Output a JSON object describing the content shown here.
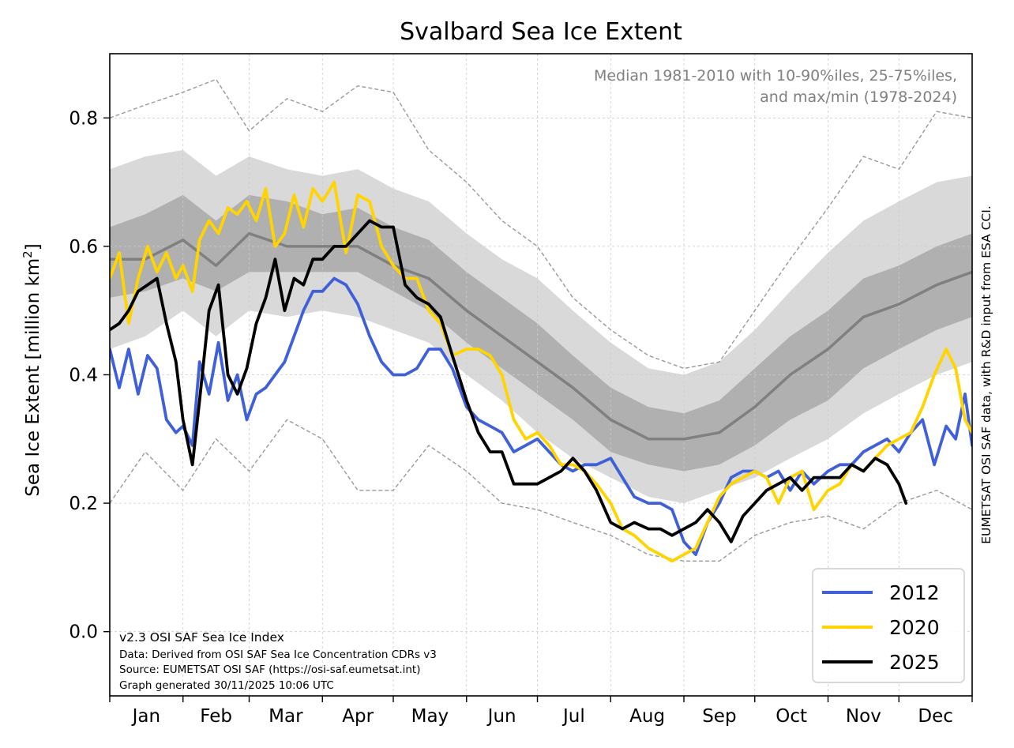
{
  "chart_data": {
    "type": "line",
    "title": "Svalbard Sea Ice Extent",
    "ylabel_main": "Sea Ice Extent [million km",
    "ylabel_sup": "2",
    "ylabel_close": "]",
    "xlabel": "",
    "ylim": [
      -0.1,
      0.9
    ],
    "xlim": [
      0,
      365
    ],
    "yticks": [
      0.0,
      0.2,
      0.4,
      0.6,
      0.8
    ],
    "ytick_labels": [
      "0.0",
      "0.2",
      "0.4",
      "0.6",
      "0.8"
    ],
    "months": [
      "Jan",
      "Feb",
      "Mar",
      "Apr",
      "May",
      "Jun",
      "Jul",
      "Aug",
      "Sep",
      "Oct",
      "Nov",
      "Dec"
    ],
    "month_starts": [
      0,
      31,
      59,
      90,
      120,
      151,
      181,
      212,
      243,
      273,
      304,
      334,
      365
    ],
    "grid": true,
    "legend_position": "bottom-right",
    "annotation_top_right": [
      "Median 1981-2010 with 10-90%iles, 25-75%iles,",
      "and max/min (1978-2024)"
    ],
    "footnote": [
      "v2.3 OSI SAF Sea Ice Index",
      "Data: Derived from OSI SAF Sea Ice Concentration CDRs v3",
      "Source: EUMETSAT OSI SAF (https://osi-saf.eumetsat.int)",
      "Graph generated 30/11/2025 10:06 UTC"
    ],
    "side_note": "EUMETSAT OSI SAF data, with R&D input from ESA CCI.",
    "climatology": {
      "x": [
        0,
        15,
        31,
        45,
        59,
        75,
        90,
        105,
        120,
        135,
        151,
        166,
        181,
        196,
        212,
        228,
        243,
        258,
        273,
        288,
        304,
        319,
        334,
        350,
        365
      ],
      "median": [
        0.58,
        0.58,
        0.61,
        0.57,
        0.62,
        0.6,
        0.6,
        0.6,
        0.57,
        0.55,
        0.5,
        0.46,
        0.42,
        0.38,
        0.33,
        0.3,
        0.3,
        0.31,
        0.35,
        0.4,
        0.44,
        0.49,
        0.51,
        0.54,
        0.56
      ],
      "p25": [
        0.52,
        0.53,
        0.55,
        0.53,
        0.56,
        0.56,
        0.56,
        0.56,
        0.53,
        0.5,
        0.45,
        0.41,
        0.37,
        0.33,
        0.28,
        0.26,
        0.25,
        0.26,
        0.29,
        0.33,
        0.36,
        0.41,
        0.44,
        0.47,
        0.49
      ],
      "p75": [
        0.63,
        0.65,
        0.68,
        0.64,
        0.68,
        0.67,
        0.65,
        0.66,
        0.63,
        0.61,
        0.56,
        0.52,
        0.48,
        0.43,
        0.38,
        0.35,
        0.34,
        0.36,
        0.41,
        0.46,
        0.5,
        0.55,
        0.57,
        0.6,
        0.62
      ],
      "p10": [
        0.44,
        0.46,
        0.5,
        0.46,
        0.5,
        0.49,
        0.5,
        0.49,
        0.47,
        0.45,
        0.4,
        0.36,
        0.31,
        0.27,
        0.24,
        0.21,
        0.2,
        0.22,
        0.24,
        0.27,
        0.3,
        0.34,
        0.37,
        0.4,
        0.42
      ],
      "p90": [
        0.72,
        0.74,
        0.75,
        0.71,
        0.74,
        0.72,
        0.71,
        0.72,
        0.69,
        0.67,
        0.62,
        0.58,
        0.55,
        0.5,
        0.45,
        0.41,
        0.4,
        0.42,
        0.47,
        0.53,
        0.59,
        0.64,
        0.67,
        0.7,
        0.71
      ],
      "max": [
        0.8,
        0.82,
        0.84,
        0.86,
        0.78,
        0.83,
        0.81,
        0.85,
        0.84,
        0.75,
        0.7,
        0.64,
        0.6,
        0.52,
        0.47,
        0.43,
        0.41,
        0.42,
        0.5,
        0.58,
        0.66,
        0.74,
        0.72,
        0.81,
        0.8
      ],
      "min": [
        0.2,
        0.28,
        0.22,
        0.3,
        0.25,
        0.33,
        0.3,
        0.22,
        0.22,
        0.29,
        0.25,
        0.2,
        0.19,
        0.17,
        0.15,
        0.12,
        0.11,
        0.11,
        0.15,
        0.17,
        0.18,
        0.16,
        0.2,
        0.22,
        0.19
      ]
    },
    "series": [
      {
        "name": "2012",
        "color": "#4060d8",
        "x": [
          0,
          4,
          8,
          12,
          16,
          20,
          24,
          28,
          31,
          35,
          38,
          42,
          46,
          50,
          54,
          58,
          62,
          66,
          70,
          74,
          78,
          82,
          86,
          90,
          95,
          100,
          105,
          110,
          115,
          120,
          125,
          130,
          135,
          140,
          145,
          151,
          156,
          161,
          166,
          171,
          176,
          181,
          186,
          191,
          196,
          201,
          206,
          212,
          217,
          222,
          228,
          233,
          238,
          243,
          248,
          253,
          258,
          263,
          268,
          273,
          278,
          283,
          288,
          293,
          298,
          304,
          309,
          314,
          319,
          324,
          329,
          334,
          339,
          344,
          349,
          354,
          358,
          362,
          365
        ],
        "y": [
          0.44,
          0.38,
          0.44,
          0.37,
          0.43,
          0.41,
          0.33,
          0.31,
          0.32,
          0.29,
          0.42,
          0.37,
          0.45,
          0.36,
          0.4,
          0.33,
          0.37,
          0.38,
          0.4,
          0.42,
          0.46,
          0.5,
          0.53,
          0.53,
          0.55,
          0.54,
          0.51,
          0.46,
          0.42,
          0.4,
          0.4,
          0.41,
          0.44,
          0.44,
          0.41,
          0.35,
          0.33,
          0.32,
          0.31,
          0.28,
          0.29,
          0.3,
          0.28,
          0.26,
          0.25,
          0.26,
          0.26,
          0.27,
          0.24,
          0.21,
          0.2,
          0.2,
          0.19,
          0.14,
          0.12,
          0.17,
          0.2,
          0.24,
          0.25,
          0.25,
          0.24,
          0.25,
          0.22,
          0.25,
          0.23,
          0.25,
          0.26,
          0.26,
          0.28,
          0.29,
          0.3,
          0.28,
          0.31,
          0.33,
          0.26,
          0.32,
          0.3,
          0.37,
          0.29
        ]
      },
      {
        "name": "2020",
        "color": "#ffd400",
        "x": [
          0,
          4,
          8,
          12,
          16,
          20,
          24,
          28,
          31,
          35,
          38,
          42,
          46,
          50,
          54,
          58,
          62,
          66,
          70,
          74,
          78,
          82,
          86,
          90,
          95,
          100,
          105,
          110,
          115,
          120,
          125,
          130,
          135,
          140,
          145,
          151,
          156,
          161,
          166,
          171,
          176,
          181,
          186,
          191,
          196,
          201,
          206,
          212,
          217,
          222,
          228,
          233,
          238,
          243,
          248,
          253,
          258,
          263,
          268,
          273,
          278,
          283,
          288,
          293,
          298,
          304,
          309,
          314,
          319,
          324,
          329,
          334,
          339,
          344,
          349,
          354,
          358,
          362,
          365
        ],
        "y": [
          0.55,
          0.59,
          0.48,
          0.55,
          0.6,
          0.56,
          0.59,
          0.55,
          0.57,
          0.53,
          0.61,
          0.64,
          0.62,
          0.66,
          0.65,
          0.67,
          0.64,
          0.69,
          0.6,
          0.62,
          0.68,
          0.63,
          0.69,
          0.67,
          0.7,
          0.59,
          0.68,
          0.67,
          0.6,
          0.57,
          0.55,
          0.55,
          0.5,
          0.48,
          0.43,
          0.44,
          0.44,
          0.43,
          0.4,
          0.33,
          0.3,
          0.31,
          0.29,
          0.26,
          0.26,
          0.25,
          0.23,
          0.2,
          0.16,
          0.15,
          0.13,
          0.12,
          0.11,
          0.12,
          0.13,
          0.17,
          0.21,
          0.23,
          0.24,
          0.25,
          0.24,
          0.2,
          0.24,
          0.25,
          0.19,
          0.22,
          0.23,
          0.26,
          0.25,
          0.27,
          0.29,
          0.3,
          0.31,
          0.35,
          0.4,
          0.44,
          0.41,
          0.33,
          0.31
        ]
      },
      {
        "name": "2025",
        "color": "#000000",
        "x": [
          0,
          4,
          8,
          12,
          16,
          20,
          24,
          28,
          31,
          35,
          38,
          42,
          46,
          50,
          54,
          58,
          62,
          66,
          70,
          74,
          78,
          82,
          86,
          90,
          95,
          100,
          105,
          110,
          115,
          120,
          125,
          130,
          135,
          140,
          145,
          151,
          156,
          161,
          166,
          171,
          176,
          181,
          186,
          191,
          196,
          201,
          206,
          212,
          217,
          222,
          228,
          233,
          238,
          243,
          248,
          253,
          258,
          263,
          268,
          273,
          278,
          283,
          288,
          293,
          298,
          304,
          309,
          314,
          319,
          324,
          329,
          334,
          337
        ],
        "y": [
          0.47,
          0.48,
          0.5,
          0.53,
          0.54,
          0.55,
          0.48,
          0.42,
          0.33,
          0.26,
          0.36,
          0.5,
          0.54,
          0.4,
          0.37,
          0.41,
          0.48,
          0.52,
          0.58,
          0.5,
          0.55,
          0.54,
          0.58,
          0.58,
          0.6,
          0.6,
          0.62,
          0.64,
          0.63,
          0.63,
          0.54,
          0.52,
          0.51,
          0.49,
          0.43,
          0.36,
          0.31,
          0.28,
          0.28,
          0.23,
          0.23,
          0.23,
          0.24,
          0.25,
          0.27,
          0.25,
          0.22,
          0.17,
          0.16,
          0.17,
          0.16,
          0.16,
          0.15,
          0.16,
          0.17,
          0.19,
          0.17,
          0.14,
          0.18,
          0.2,
          0.22,
          0.23,
          0.24,
          0.22,
          0.24,
          0.24,
          0.24,
          0.26,
          0.25,
          0.27,
          0.26,
          0.23,
          0.2
        ]
      }
    ]
  }
}
